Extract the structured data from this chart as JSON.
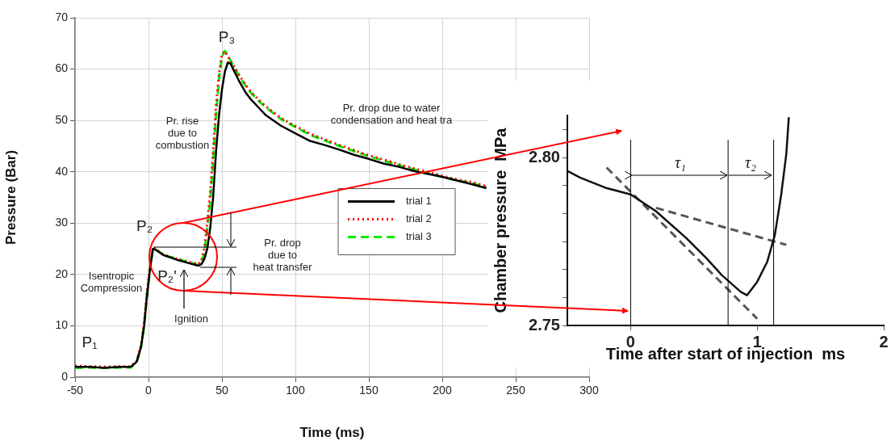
{
  "chart_data": [
    {
      "type": "line",
      "xlabel": "Time (ms)",
      "ylabel": "Pressure (Bar)",
      "x": [
        -50,
        -40,
        -30,
        -20,
        -12,
        -8,
        -5,
        -3,
        -1,
        1,
        3,
        5,
        10,
        15,
        20,
        25,
        30,
        34,
        36,
        38,
        40,
        42,
        44,
        46,
        48,
        50,
        52,
        54,
        56,
        58,
        62,
        66,
        70,
        75,
        80,
        90,
        100,
        110,
        120,
        130,
        140,
        150,
        160,
        170,
        180,
        190,
        200,
        210,
        220,
        230
      ],
      "series": [
        {
          "name": "trial 1",
          "color": "#000000",
          "line_style": "solid",
          "values": [
            2,
            2,
            1.8,
            2,
            2,
            3,
            6,
            10,
            16,
            21,
            25,
            24.8,
            23.8,
            23.3,
            22.8,
            22.4,
            22,
            21.7,
            22,
            23,
            25,
            29,
            35,
            44,
            51,
            56,
            59.5,
            61.3,
            61,
            59.8,
            57.5,
            55.5,
            54,
            52.5,
            51,
            49,
            47.5,
            46,
            45.2,
            44.3,
            43.3,
            42.5,
            41.6,
            41,
            40.2,
            39.6,
            39,
            38.3,
            37.6,
            36.8
          ]
        },
        {
          "name": "trial 2",
          "color": "#ff0000",
          "line_style": "dotted",
          "values": [
            2.2,
            2.1,
            2,
            2.1,
            2.1,
            3.2,
            6.3,
            10.5,
            16.5,
            21.5,
            25.2,
            24.9,
            23.9,
            23.4,
            23,
            22.6,
            22.3,
            22,
            22.8,
            25,
            30,
            36,
            44,
            53,
            59,
            62.8,
            63.5,
            62.5,
            61.6,
            60.7,
            58.7,
            57,
            55.5,
            54,
            52.7,
            50.5,
            48.9,
            47.4,
            46.3,
            45.2,
            44.2,
            43.2,
            42.4,
            41.5,
            40.7,
            40,
            39.2,
            38.5,
            38,
            37.2
          ]
        },
        {
          "name": "trial 3",
          "color": "#00ee00",
          "line_style": "dashed",
          "values": [
            1.8,
            1.9,
            1.8,
            1.9,
            1.9,
            3,
            6,
            10,
            16,
            21,
            25,
            24.8,
            23.9,
            23.4,
            23,
            22.6,
            22.2,
            21.8,
            22.5,
            24,
            29,
            34,
            42,
            51,
            58,
            62.5,
            63.5,
            62.8,
            61.5,
            60.5,
            58.5,
            56.8,
            55.3,
            53.8,
            52.5,
            50.3,
            48.7,
            47.2,
            46.1,
            45,
            44,
            43,
            42.2,
            41.3,
            40.5,
            39.8,
            39,
            38.3,
            37.8,
            37
          ]
        }
      ],
      "xlim": [
        -50,
        300
      ],
      "xticks": [
        -50,
        0,
        50,
        100,
        150,
        200,
        250,
        300
      ],
      "ylim": [
        0,
        70
      ],
      "yticks": [
        0,
        10,
        20,
        30,
        40,
        50,
        60,
        70
      ],
      "grid": true,
      "legend": "center",
      "marker": "none",
      "annotations": [
        "P₁",
        "P₂",
        "P₂'",
        "P₃",
        "Pr. rise\ndue to\ncombustion",
        "Pr. drop due to water\ncondensation and heat tra",
        "Pr. drop\ndue to\nheat transfer",
        "Isentropic\nCompression",
        "Ignition"
      ]
    },
    {
      "type": "line",
      "xlabel": "Time after start of injection  ms",
      "ylabel": "Chamber pressure  MPa",
      "series": [
        {
          "color": "#111111",
          "line_style": "solid",
          "x": [
            -0.5,
            -0.4,
            -0.2,
            0,
            0.2,
            0.44,
            0.6,
            0.72,
            0.87,
            0.92,
            1.0,
            1.08,
            1.14,
            1.19,
            1.23,
            1.25
          ],
          "values": [
            2.796,
            2.794,
            2.791,
            2.789,
            2.784,
            2.776,
            2.77,
            2.765,
            2.76,
            2.759,
            2.763,
            2.769,
            2.777,
            2.789,
            2.801,
            2.812
          ]
        },
        {
          "color": "#555555",
          "line_style": "dashed",
          "x": [
            -0.19,
            1.0
          ],
          "values": [
            2.797,
            2.752
          ]
        },
        {
          "color": "#555555",
          "line_style": "dashed",
          "x": [
            0.2,
            1.23
          ],
          "values": [
            2.785,
            2.774
          ]
        }
      ],
      "xlim": [
        -0.5,
        2
      ],
      "xticks": [
        0,
        1,
        2
      ],
      "ylim": [
        2.75,
        2.8125
      ],
      "yticks": [
        2.75,
        {
          "value": 2.7583,
          "label": null
        },
        {
          "value": 2.7667,
          "label": null
        },
        {
          "value": 2.775,
          "label": null
        },
        {
          "value": 2.7833,
          "label": null
        },
        {
          "value": 2.7917,
          "label": null
        },
        {
          "value": 2.8,
          "label": "2.80"
        },
        {
          "value": 2.8083,
          "label": null
        }
      ],
      "grid": false,
      "marker": "none",
      "ref_lines": [
        {
          "axis": "x",
          "value": 0
        },
        {
          "axis": "x",
          "value": 0.77
        },
        {
          "axis": "x",
          "value": 1.13
        }
      ],
      "annotations": [
        "τ₁",
        "τ₂"
      ]
    }
  ]
}
